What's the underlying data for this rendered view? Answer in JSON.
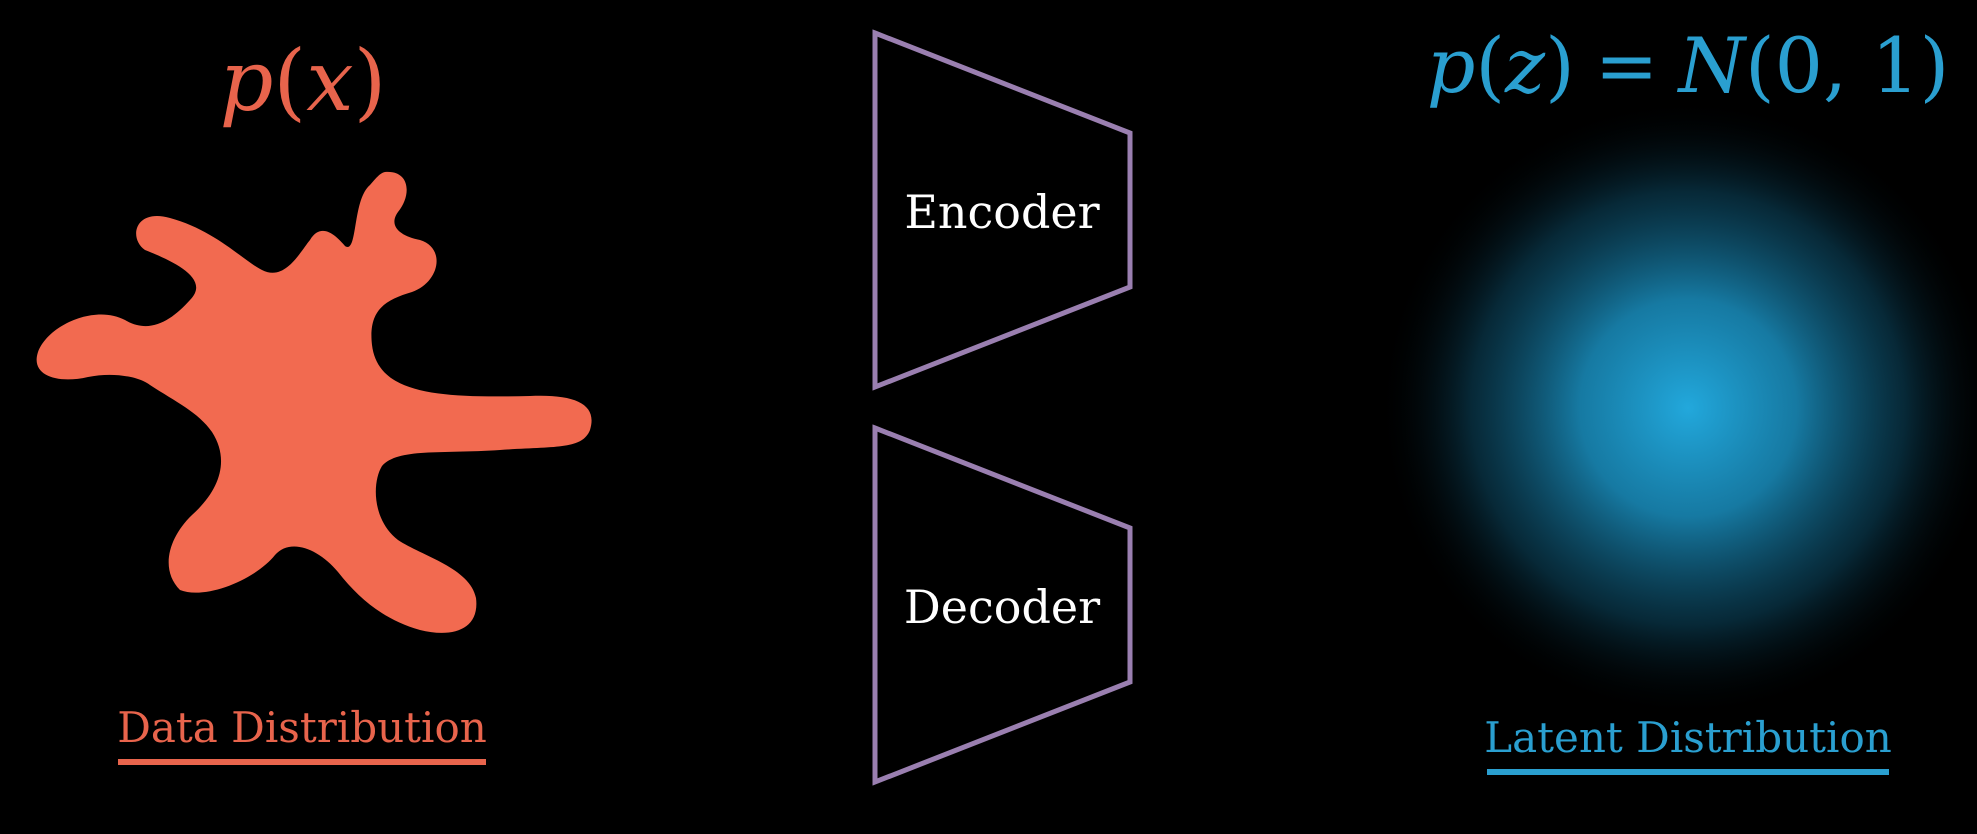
{
  "data_side": {
    "formula": {
      "func": "p",
      "open": "(",
      "var": "x",
      "close": ")"
    },
    "caption": "Data Distribution",
    "color": "#e8644c",
    "blob_color": "#f26a50"
  },
  "latent_side": {
    "formula": {
      "func": "p",
      "open": "(",
      "var": "z",
      "close": ")",
      "equals": "=",
      "normal": "N",
      "params": "(0, 1)"
    },
    "caption": "Latent Distribution",
    "color": "#2a9fd0",
    "glow_color": "#22a8dc"
  },
  "encoder": {
    "label": "Encoder",
    "outline_color": "#9a7fb0"
  },
  "decoder": {
    "label": "Decoder",
    "outline_color": "#9a7fb0"
  },
  "text_color": "#ffffff",
  "background_color": "#000000"
}
